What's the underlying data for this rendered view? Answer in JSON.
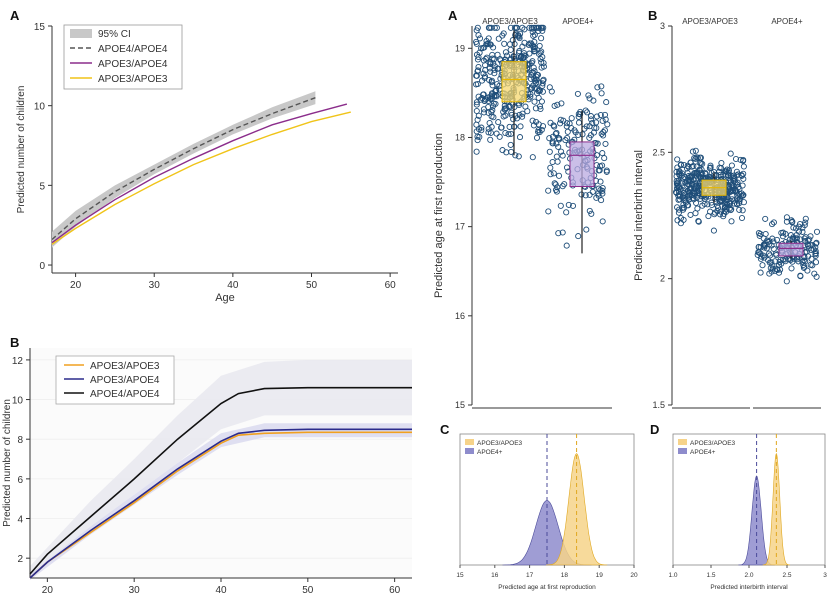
{
  "colors": {
    "e4e4_dash": "#555555",
    "e3e4_purple": "#8b2d8b",
    "e3e3_yellow": "#f0c419",
    "ci_grey": "#c8c8c8",
    "b_e3e3": "#f0a020",
    "b_e3e4": "#2b2b8c",
    "b_e4e4": "#111111",
    "dot_stroke": "#1f4e79",
    "box_yellow": "#f5d76e",
    "box_purple": "#b9a9e0",
    "dens_yellow": "#f6d38a",
    "dens_purple": "#8e8ccc"
  },
  "chart_data": [
    {
      "panel_label": "A",
      "type": "line",
      "xlabel": "Age",
      "ylabel": "Predicted number of children",
      "xticks": [
        20,
        30,
        40,
        50,
        60
      ],
      "yticks": [
        0,
        5,
        10,
        15
      ],
      "xlim": [
        17,
        61
      ],
      "ylim": [
        -0.5,
        15
      ],
      "legend": [
        "95% CI",
        "APOE4/APOE4",
        "APOE3/APOE4",
        "APOE3/APOE3"
      ],
      "series": [
        {
          "name": "APOE4/APOE4",
          "x": [
            17,
            20,
            25,
            30,
            35,
            40,
            45,
            50.5
          ],
          "y": [
            1.6,
            2.9,
            4.6,
            6.0,
            7.3,
            8.5,
            9.5,
            10.5
          ]
        },
        {
          "name": "APOE3/APOE4",
          "x": [
            17,
            20,
            25,
            30,
            35,
            40,
            45,
            50,
            54.5
          ],
          "y": [
            1.4,
            2.5,
            4.1,
            5.5,
            6.7,
            7.8,
            8.8,
            9.5,
            10.1
          ]
        },
        {
          "name": "APOE3/APOE3",
          "x": [
            17,
            20,
            25,
            30,
            35,
            40,
            45,
            50,
            55
          ],
          "y": [
            1.3,
            2.3,
            3.8,
            5.1,
            6.3,
            7.3,
            8.2,
            9.0,
            9.6
          ]
        }
      ],
      "ci": {
        "x": [
          17,
          20,
          25,
          30,
          35,
          40,
          45,
          50.5
        ],
        "lower": [
          1.1,
          2.4,
          4.2,
          5.7,
          7.0,
          8.2,
          9.2,
          10.1
        ],
        "upper": [
          2.1,
          3.4,
          5.0,
          6.3,
          7.6,
          8.8,
          9.9,
          10.9
        ]
      }
    },
    {
      "panel_label": "B",
      "type": "line",
      "ylabel": "Predicted number of children",
      "xticks": [
        20,
        30,
        40,
        50,
        60
      ],
      "yticks": [
        2,
        4,
        6,
        8,
        10,
        12
      ],
      "xlim": [
        18,
        62
      ],
      "ylim": [
        1,
        12.6
      ],
      "legend": [
        "APOE3/APOE3",
        "APOE3/APOE4",
        "APOE4/APOE4"
      ],
      "series": [
        {
          "name": "APOE3/APOE3",
          "x": [
            18,
            20,
            25,
            30,
            35,
            40,
            42,
            45,
            50,
            62
          ],
          "y": [
            1.0,
            1.8,
            3.3,
            4.8,
            6.4,
            7.8,
            8.2,
            8.3,
            8.35,
            8.35
          ]
        },
        {
          "name": "APOE3/APOE4",
          "x": [
            18,
            20,
            25,
            30,
            35,
            40,
            42,
            45,
            50,
            62
          ],
          "y": [
            1.0,
            1.8,
            3.4,
            4.9,
            6.5,
            7.9,
            8.3,
            8.45,
            8.5,
            8.5
          ]
        },
        {
          "name": "APOE4/APOE4",
          "x": [
            18,
            20,
            25,
            30,
            35,
            40,
            42,
            45,
            50,
            62
          ],
          "y": [
            1.2,
            2.2,
            4.1,
            6.0,
            8.0,
            9.8,
            10.3,
            10.55,
            10.6,
            10.6
          ]
        }
      ],
      "bands": [
        {
          "name": "APOE4/APOE4",
          "x": [
            18,
            25,
            30,
            35,
            40,
            45,
            50,
            62
          ],
          "lower": [
            1.0,
            3.5,
            5.2,
            6.8,
            8.5,
            9.2,
            9.2,
            9.2
          ],
          "upper": [
            1.6,
            4.9,
            7.0,
            9.2,
            11.2,
            11.9,
            12.0,
            12.0
          ]
        },
        {
          "name": "APOE3/APOE4",
          "x": [
            18,
            25,
            30,
            35,
            40,
            45,
            50,
            62
          ],
          "lower": [
            0.9,
            3.2,
            4.7,
            6.2,
            7.6,
            8.1,
            8.1,
            8.1
          ],
          "upper": [
            1.2,
            3.6,
            5.2,
            6.8,
            8.3,
            8.8,
            8.8,
            8.8
          ]
        }
      ]
    },
    {
      "panel_label": "A",
      "type": "scatter",
      "ylabel": "Predicted age at first reproduction",
      "groups": [
        "APOE3/APOE3",
        "APOE4+"
      ],
      "yticks": [
        15,
        16,
        17,
        18,
        19
      ],
      "ylim": [
        15,
        19.25
      ],
      "box": [
        {
          "group": "APOE3/APOE3",
          "q1": 18.4,
          "median": 18.65,
          "q3": 18.85,
          "whisker_low": 17.8,
          "whisker_high": 19.2
        },
        {
          "group": "APOE4+",
          "q1": 17.45,
          "median": 17.8,
          "q3": 17.95,
          "whisker_low": 16.7,
          "whisker_high": 18.3
        }
      ]
    },
    {
      "panel_label": "B",
      "type": "scatter",
      "ylabel": "Predicted interbirth interval",
      "groups": [
        "APOE3/APOE3",
        "APOE4+"
      ],
      "yticks": [
        1.5,
        2,
        2.5,
        3
      ],
      "ylim": [
        1.5,
        3.0
      ],
      "box": [
        {
          "group": "APOE3/APOE3",
          "q1": 2.33,
          "median": 2.36,
          "q3": 2.39,
          "whisker_low": 2.3,
          "whisker_high": 2.42
        },
        {
          "group": "APOE4+",
          "q1": 2.09,
          "median": 2.12,
          "q3": 2.14,
          "whisker_low": 2.08,
          "whisker_high": 2.15
        }
      ]
    },
    {
      "panel_label": "C",
      "type": "area",
      "xlabel": "Predicted age at first reproduction",
      "xticks": [
        15,
        16,
        17,
        18,
        19,
        20
      ],
      "xlim": [
        15,
        20
      ],
      "legend": [
        "APOE3/APOE3",
        "APOE4+"
      ],
      "densities": [
        {
          "name": "APOE3/APOE3",
          "mean": 18.35,
          "sd": 0.22,
          "peak": 1.0
        },
        {
          "name": "APOE4+",
          "mean": 17.5,
          "sd": 0.32,
          "peak": 0.58
        }
      ]
    },
    {
      "panel_label": "D",
      "type": "area",
      "xlabel": "Predicted interbirth interval",
      "xticks": [
        1.0,
        1.5,
        2.0,
        2.5,
        3.0
      ],
      "xtick_labels": [
        "1.0",
        "1.5",
        "2.0",
        "2.5",
        "3"
      ],
      "xlim": [
        1.0,
        3.0
      ],
      "legend": [
        "APOE3/APOE3",
        "APOE4+"
      ],
      "densities": [
        {
          "name": "APOE3/APOE3",
          "mean": 2.36,
          "sd": 0.045,
          "peak": 1.0
        },
        {
          "name": "APOE4+",
          "mean": 2.1,
          "sd": 0.06,
          "peak": 0.8
        }
      ]
    }
  ]
}
